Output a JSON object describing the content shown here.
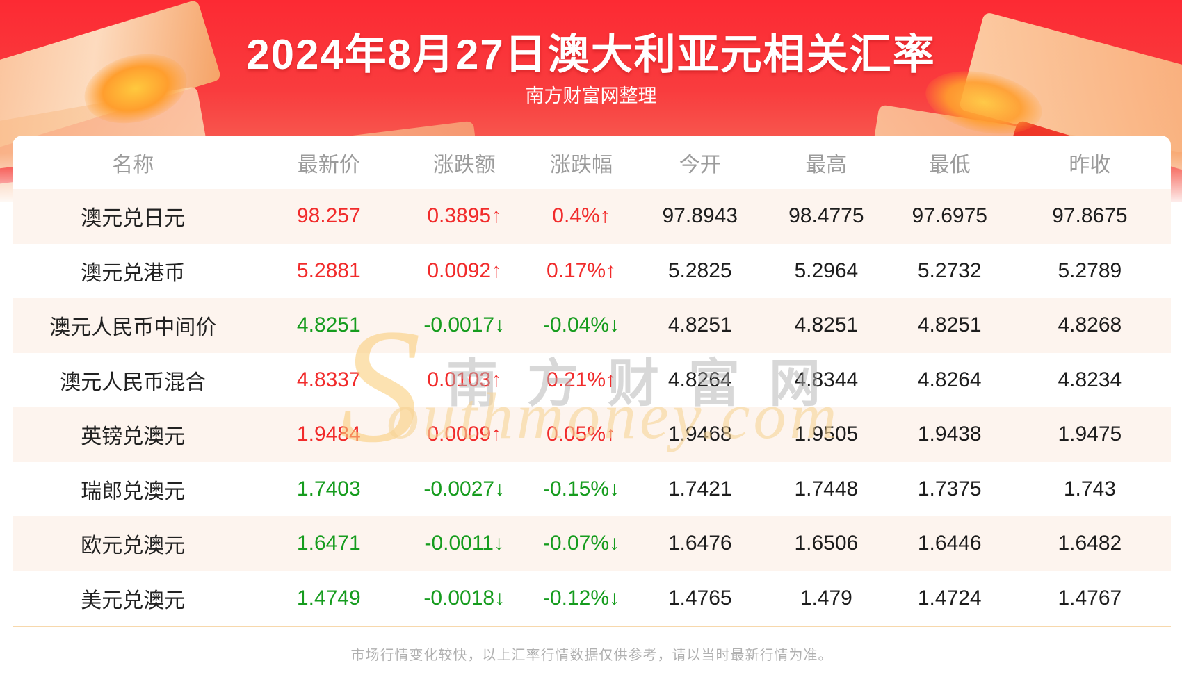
{
  "page": {
    "title": "2024年8月27日澳大利亚元相关汇率",
    "subtitle": "南方财富网整理",
    "footer_note": "市场行情变化较快，以上汇率行情数据仅供参考，请以当时最新行情为准。"
  },
  "watermark": {
    "initial": "S",
    "cn": "南方财富网",
    "en": "outhmoney.com"
  },
  "colors": {
    "banner_red_top": "#fc2a33",
    "banner_red_bottom": "#f75a50",
    "up_red": "#f12b2b",
    "down_green": "#169c1e",
    "row_alt_bg": "#fdf4ee",
    "header_text": "#9b9b9b",
    "separator": "#f7d8ac"
  },
  "table": {
    "headers": [
      "名称",
      "最新价",
      "涨跌额",
      "涨跌幅",
      "今开",
      "最高",
      "最低",
      "昨收"
    ],
    "rows": [
      {
        "name": "澳元兑日元",
        "last": "98.257",
        "change": "0.3895↑",
        "change_pct": "0.4%↑",
        "open": "97.8943",
        "high": "98.4775",
        "low": "97.6975",
        "prev": "97.8675",
        "trend": "up"
      },
      {
        "name": "澳元兑港币",
        "last": "5.2881",
        "change": "0.0092↑",
        "change_pct": "0.17%↑",
        "open": "5.2825",
        "high": "5.2964",
        "low": "5.2732",
        "prev": "5.2789",
        "trend": "up"
      },
      {
        "name": "澳元人民币中间价",
        "last": "4.8251",
        "change": "-0.0017↓",
        "change_pct": "-0.04%↓",
        "open": "4.8251",
        "high": "4.8251",
        "low": "4.8251",
        "prev": "4.8268",
        "trend": "down"
      },
      {
        "name": "澳元人民币混合",
        "last": "4.8337",
        "change": "0.0103↑",
        "change_pct": "0.21%↑",
        "open": "4.8264",
        "high": "4.8344",
        "low": "4.8264",
        "prev": "4.8234",
        "trend": "up"
      },
      {
        "name": "英镑兑澳元",
        "last": "1.9484",
        "change": "0.0009↑",
        "change_pct": "0.05%↑",
        "open": "1.9468",
        "high": "1.9505",
        "low": "1.9438",
        "prev": "1.9475",
        "trend": "up"
      },
      {
        "name": "瑞郎兑澳元",
        "last": "1.7403",
        "change": "-0.0027↓",
        "change_pct": "-0.15%↓",
        "open": "1.7421",
        "high": "1.7448",
        "low": "1.7375",
        "prev": "1.743",
        "trend": "down"
      },
      {
        "name": "欧元兑澳元",
        "last": "1.6471",
        "change": "-0.0011↓",
        "change_pct": "-0.07%↓",
        "open": "1.6476",
        "high": "1.6506",
        "low": "1.6446",
        "prev": "1.6482",
        "trend": "down"
      },
      {
        "name": "美元兑澳元",
        "last": "1.4749",
        "change": "-0.0018↓",
        "change_pct": "-0.12%↓",
        "open": "1.4765",
        "high": "1.479",
        "low": "1.4724",
        "prev": "1.4767",
        "trend": "down"
      }
    ]
  }
}
